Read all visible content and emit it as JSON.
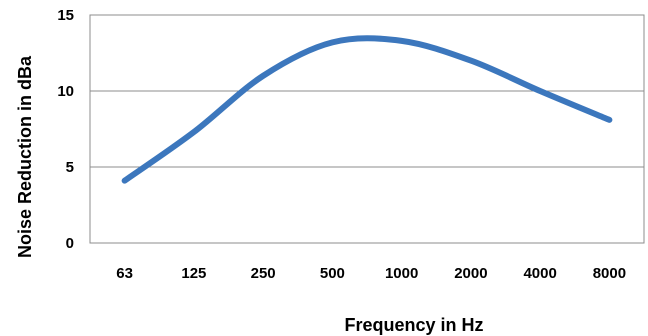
{
  "chart_data": {
    "type": "line",
    "title": "",
    "xlabel": "Frequency in Hz",
    "ylabel": "Noise Reduction in dBa",
    "categories": [
      "63",
      "125",
      "250",
      "500",
      "1000",
      "2000",
      "4000",
      "8000"
    ],
    "y_ticks": [
      "0",
      "5",
      "10",
      "15"
    ],
    "ylim": [
      0,
      15
    ],
    "grid": true,
    "legend": "none",
    "smoothed": true,
    "series": [
      {
        "values": [
          4.1,
          7.3,
          11.0,
          13.2,
          13.3,
          12.0,
          10.0,
          8.1
        ],
        "color": "#3c77bd"
      }
    ]
  }
}
